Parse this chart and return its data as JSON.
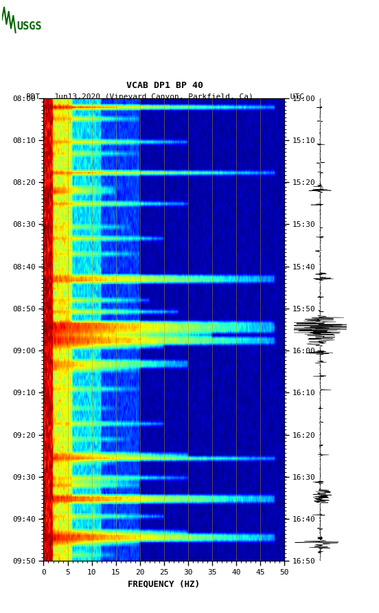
{
  "title_line1": "VCAB DP1 BP 40",
  "title_line2_left": "PDT",
  "title_line2_mid": "Jun13,2020 (Vineyard Canyon, Parkfield, Ca)",
  "title_line2_right": "UTC",
  "xlabel": "FREQUENCY (HZ)",
  "freq_min": 0,
  "freq_max": 50,
  "freq_ticks": [
    0,
    5,
    10,
    15,
    20,
    25,
    30,
    35,
    40,
    45,
    50
  ],
  "time_labels_left": [
    "08:00",
    "08:10",
    "08:20",
    "08:30",
    "08:40",
    "08:50",
    "09:00",
    "09:10",
    "09:20",
    "09:30",
    "09:40",
    "09:50"
  ],
  "time_labels_right": [
    "15:00",
    "15:10",
    "15:20",
    "15:30",
    "15:40",
    "15:50",
    "16:00",
    "16:10",
    "16:20",
    "16:30",
    "16:40",
    "16:50"
  ],
  "n_time_steps": 120,
  "n_freq_bins": 500,
  "bg_color": "white",
  "spectrogram_cmap": "jet",
  "vertical_grid_lines": [
    5,
    10,
    15,
    20,
    25,
    30,
    35,
    40,
    45
  ],
  "seed": 42
}
